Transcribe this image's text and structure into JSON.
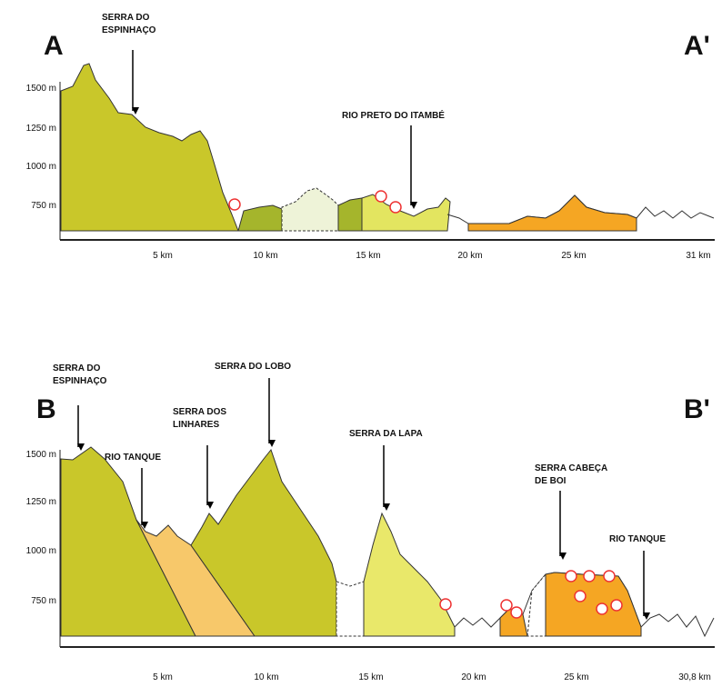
{
  "section_a": {
    "start": "A",
    "end": "A'",
    "annotations": [
      {
        "lines": [
          "SERRA DO",
          "ESPINHAÇO"
        ]
      },
      {
        "lines": [
          "RIO PRETO DO ITAMBÉ"
        ]
      }
    ],
    "yticks": [
      "1500 m",
      "1250 m",
      "1000 m",
      "750 m"
    ],
    "xticks": [
      "5 km",
      "10 km",
      "15 km",
      "20 km",
      "25 km",
      "31 km"
    ]
  },
  "section_b": {
    "start": "B",
    "end": "B'",
    "annotations": [
      {
        "lines": [
          "SERRA DO",
          "ESPINHAÇO"
        ]
      },
      {
        "lines": [
          "RIO TANQUE"
        ]
      },
      {
        "lines": [
          "SERRA DOS",
          "LINHARES"
        ]
      },
      {
        "lines": [
          "SERRA DO LOBO"
        ]
      },
      {
        "lines": [
          "SERRA DA LAPA"
        ]
      },
      {
        "lines": [
          "SERRA CABEÇA",
          "DE BOI"
        ]
      },
      {
        "lines": [
          "RIO TANQUE"
        ]
      }
    ],
    "yticks": [
      "1500 m",
      "1250 m",
      "1000 m",
      "750 m"
    ],
    "xticks": [
      "5 km",
      "10 km",
      "15 km",
      "20 km",
      "25 km",
      "30,8 km"
    ]
  }
}
